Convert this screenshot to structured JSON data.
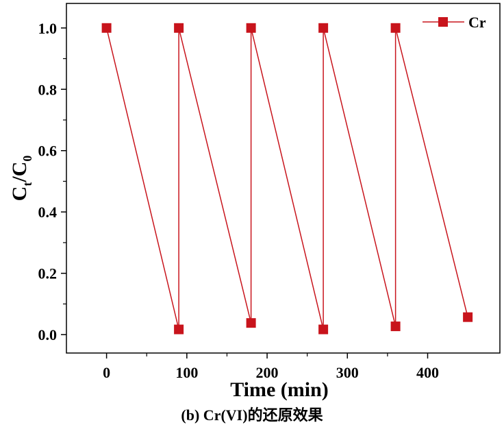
{
  "chart_data": {
    "type": "line",
    "title": "",
    "xlabel": "Time (min)",
    "ylabel": {
      "main": "C",
      "sub1": "t",
      "mid": "/C",
      "sub2": "0"
    },
    "xlim": [
      -50,
      490
    ],
    "ylim": [
      -0.06,
      1.08
    ],
    "x_ticks": [
      0,
      100,
      200,
      300,
      400
    ],
    "x_tick_labels": [
      "0",
      "100",
      "200",
      "300",
      "400"
    ],
    "y_ticks": [
      0.0,
      0.2,
      0.4,
      0.6,
      0.8,
      1.0
    ],
    "y_tick_labels": [
      "0.0",
      "0.2",
      "0.4",
      "0.6",
      "0.8",
      "1.0"
    ],
    "grid": false,
    "legend_position": "top-right",
    "series": [
      {
        "name": "Cr",
        "color": "#c8141c",
        "marker": "square",
        "points": [
          {
            "x": 0,
            "y": 1.0
          },
          {
            "x": 90,
            "y": 0.017
          },
          {
            "x": 90,
            "y": 1.0
          },
          {
            "x": 180,
            "y": 0.038
          },
          {
            "x": 180,
            "y": 1.0
          },
          {
            "x": 270,
            "y": 0.017
          },
          {
            "x": 270,
            "y": 1.0
          },
          {
            "x": 360,
            "y": 0.027
          },
          {
            "x": 360,
            "y": 1.0
          },
          {
            "x": 450,
            "y": 0.057
          }
        ]
      }
    ]
  },
  "caption": "(b) Cr(VI)的还原效果"
}
